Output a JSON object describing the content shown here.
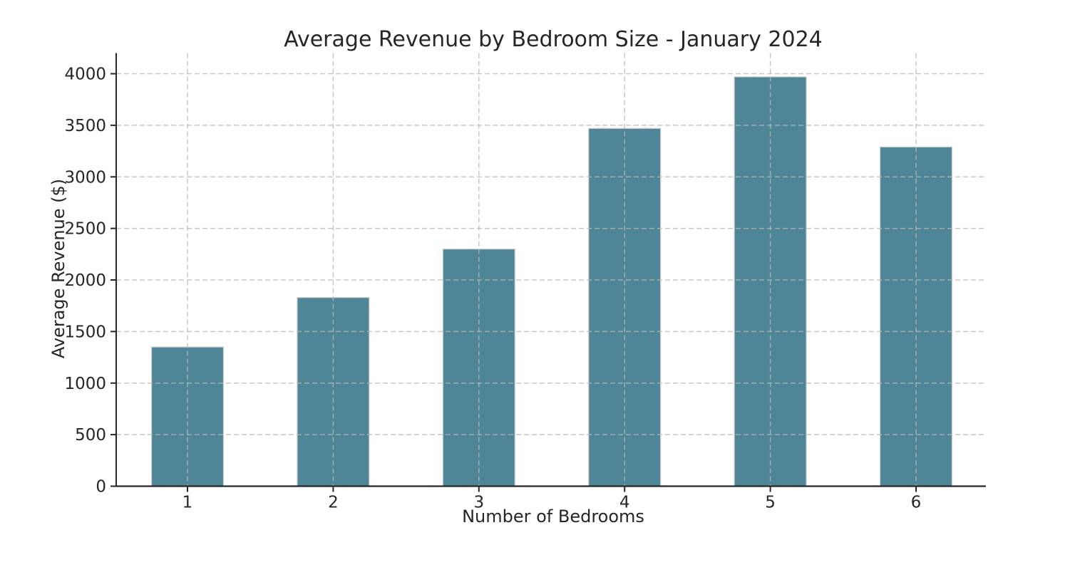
{
  "chart_data": {
    "type": "bar",
    "title": "Average Revenue by Bedroom Size - January 2024",
    "xlabel": "Number of Bedrooms",
    "ylabel": "Average Revenue ($)",
    "categories": [
      "1",
      "2",
      "3",
      "4",
      "5",
      "6"
    ],
    "values": [
      1350,
      1830,
      2300,
      3470,
      3970,
      3290
    ],
    "yticks": [
      0,
      500,
      1000,
      1500,
      2000,
      2500,
      3000,
      3500,
      4000
    ],
    "ylim": [
      0,
      4200
    ],
    "grid": true,
    "grid_style": "dashed",
    "legend_position": "none",
    "colors": {
      "bar": "#4E8597",
      "bar_edge": "#CFCFCF",
      "grid": "#B8B8B8",
      "spine": "#262626",
      "text": "#262626",
      "background": "#FFFFFF"
    }
  }
}
